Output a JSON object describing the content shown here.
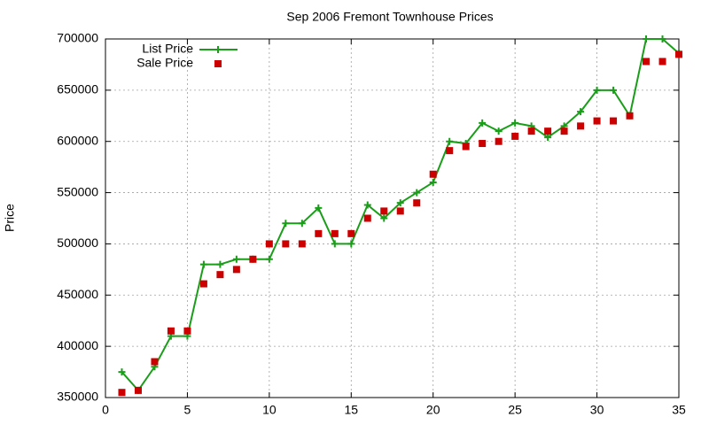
{
  "chart_data": {
    "type": "line",
    "title": "Sep 2006 Fremont Townhouse Prices",
    "y_label": "Price",
    "x": [
      1,
      2,
      3,
      4,
      5,
      6,
      7,
      8,
      9,
      10,
      11,
      12,
      13,
      14,
      15,
      16,
      17,
      18,
      19,
      20,
      21,
      22,
      23,
      24,
      25,
      26,
      27,
      28,
      29,
      30,
      31,
      32,
      33,
      34,
      35
    ],
    "series": [
      {
        "name": "List Price",
        "color": "#1a9e1a",
        "style": "linespoints",
        "values": [
          375000,
          357000,
          380000,
          410000,
          410000,
          480000,
          480000,
          485000,
          485000,
          485000,
          520000,
          520000,
          535000,
          500000,
          500000,
          538000,
          525000,
          540000,
          550000,
          560000,
          600000,
          598000,
          618000,
          610000,
          618000,
          615000,
          604000,
          615000,
          629000,
          650000,
          650000,
          625000,
          700000,
          700000,
          686000
        ]
      },
      {
        "name": "Sale Price",
        "color": "#cc0000",
        "style": "points",
        "values": [
          355000,
          357000,
          385000,
          415000,
          415000,
          461000,
          470000,
          475000,
          485000,
          500000,
          500000,
          500000,
          510000,
          510000,
          510000,
          525000,
          532000,
          532000,
          540000,
          568000,
          591000,
          595000,
          598000,
          600000,
          605000,
          610000,
          610000,
          610000,
          615000,
          620000,
          620000,
          625000,
          678000,
          678000,
          685000
        ]
      }
    ],
    "xlim": [
      0,
      35
    ],
    "xticks": [
      0,
      5,
      10,
      15,
      20,
      25,
      30,
      35
    ],
    "ylim": [
      350000,
      700000
    ],
    "yticks": [
      350000,
      400000,
      450000,
      500000,
      550000,
      600000,
      650000,
      700000
    ],
    "grid": true,
    "legend": "top-left"
  }
}
